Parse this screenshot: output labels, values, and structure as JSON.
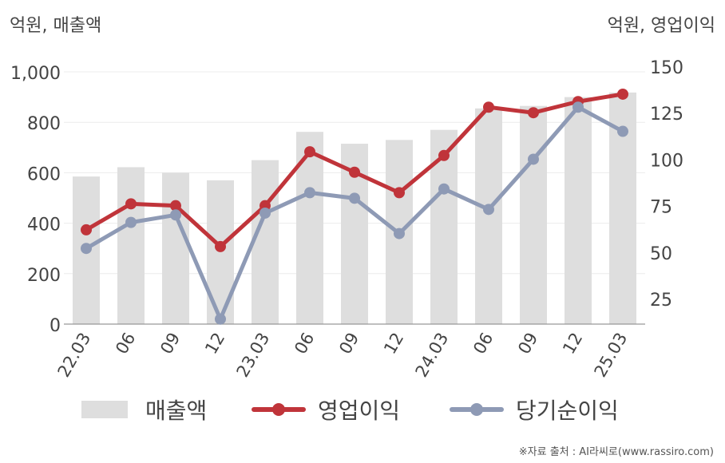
{
  "left_unit_label": "억원, 매출액",
  "right_unit_label": "억원, 영업이익",
  "source": "※자료 출처 : AI라씨로(www.rassiro.com)",
  "chart_data": {
    "type": "bar",
    "categories": [
      "22.03",
      "06",
      "09",
      "12",
      "23.03",
      "06",
      "09",
      "12",
      "24.03",
      "06",
      "09",
      "12",
      "25.03"
    ],
    "series": [
      {
        "name": "매출액",
        "type": "bar",
        "axis": "left",
        "color": "#dedede",
        "values": [
          585,
          622,
          600,
          570,
          650,
          762,
          715,
          730,
          770,
          855,
          865,
          900,
          918
        ]
      },
      {
        "name": "영업이익",
        "type": "line",
        "axis": "right",
        "color": "#c0343a",
        "values": [
          62,
          76,
          75,
          53,
          75,
          104,
          93,
          82,
          102,
          128,
          125,
          131,
          135
        ]
      },
      {
        "name": "당기순이익",
        "type": "line",
        "axis": "right",
        "color": "#8e9ab5",
        "values": [
          52,
          66,
          70,
          14,
          71,
          82,
          79,
          60,
          84,
          73,
          100,
          128,
          115
        ]
      }
    ],
    "y_left": {
      "ticks": [
        "0",
        "200",
        "400",
        "600",
        "800",
        "1,000"
      ],
      "range": [
        0,
        1000
      ]
    },
    "y_right": {
      "ticks": [
        "25",
        "50",
        "75",
        "100",
        "125",
        "150"
      ],
      "range": [
        11.3,
        147
      ]
    },
    "grid": true,
    "legend_position": "bottom"
  }
}
